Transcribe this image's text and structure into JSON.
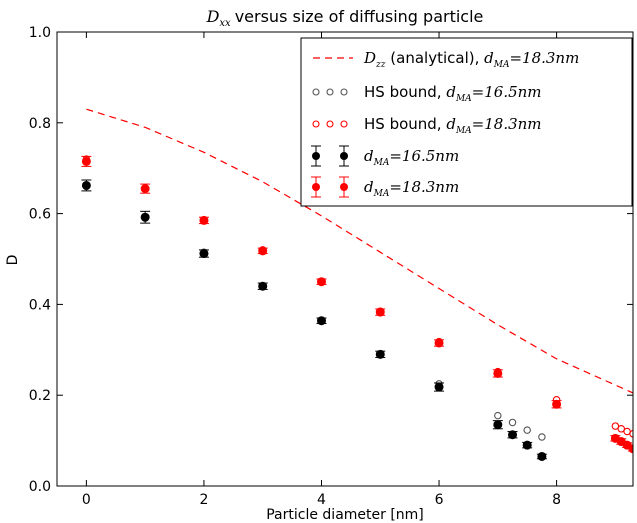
{
  "chart_data": {
    "type": "scatter",
    "title": "versus size of diffusing particle",
    "title_math": "D",
    "title_math_sub": "xx",
    "xlabel": "Particle diameter [nm]",
    "ylabel": "D",
    "xlim": [
      -0.5,
      9.3
    ],
    "ylim": [
      0.0,
      1.0
    ],
    "xticks": [
      0,
      2,
      4,
      6,
      8
    ],
    "yticks": [
      0.0,
      0.2,
      0.4,
      0.6,
      0.8,
      1.0
    ],
    "xtick_labels": [
      "0",
      "2",
      "4",
      "6",
      "8"
    ],
    "ytick_labels": [
      "0.0",
      "0.2",
      "0.4",
      "0.6",
      "0.8",
      "1.0"
    ],
    "grid": false,
    "legend_position": "top-right",
    "colors": {
      "black": "#000000",
      "red": "#ff0000",
      "grey": "#555555"
    },
    "legend": [
      {
        "text": "(analytical), ",
        "math_pre": "D",
        "math_pre_sub": "zz",
        "math": "d",
        "math_sub": "MA",
        "math_post": "=18.3nm"
      },
      {
        "text": "HS bound, ",
        "math": "d",
        "math_sub": "MA",
        "math_post": "=16.5nm"
      },
      {
        "text": "HS bound, ",
        "math": "d",
        "math_sub": "MA",
        "math_post": "=18.3nm"
      },
      {
        "text": "",
        "math": "d",
        "math_sub": "MA",
        "math_post": "=16.5nm"
      },
      {
        "text": "",
        "math": "d",
        "math_sub": "MA",
        "math_post": "=18.3nm"
      }
    ],
    "series": [
      {
        "kind": "dashed-line",
        "color": "red",
        "x": [
          0,
          1,
          2,
          3,
          4,
          5,
          6,
          7,
          8,
          9.3
        ],
        "y": [
          0.83,
          0.79,
          0.735,
          0.67,
          0.595,
          0.515,
          0.435,
          0.355,
          0.28,
          0.205
        ]
      },
      {
        "kind": "open-circles",
        "color": "grey",
        "x": [
          0,
          1,
          2,
          3,
          4,
          5,
          6,
          7,
          7.25,
          7.5,
          7.75
        ],
        "y": [
          0.66,
          0.59,
          0.515,
          0.44,
          0.365,
          0.29,
          0.225,
          0.155,
          0.14,
          0.123,
          0.108
        ]
      },
      {
        "kind": "open-circles",
        "color": "red",
        "x": [
          0,
          1,
          2,
          3,
          4,
          5,
          6,
          7,
          8,
          9.0,
          9.1,
          9.2,
          9.3
        ],
        "y": [
          0.72,
          0.655,
          0.585,
          0.52,
          0.45,
          0.385,
          0.318,
          0.252,
          0.19,
          0.132,
          0.126,
          0.12,
          0.115
        ]
      },
      {
        "kind": "filled-errorbars",
        "color": "black",
        "x": [
          0,
          1,
          2,
          3,
          4,
          5,
          6,
          7,
          7.25,
          7.5,
          7.75
        ],
        "y": [
          0.662,
          0.592,
          0.512,
          0.44,
          0.364,
          0.29,
          0.218,
          0.135,
          0.113,
          0.09,
          0.065
        ],
        "err": [
          0.012,
          0.013,
          0.008,
          0.007,
          0.006,
          0.007,
          0.009,
          0.009,
          0.007,
          0.006,
          0.005
        ]
      },
      {
        "kind": "filled-errorbars",
        "color": "red",
        "x": [
          0,
          1,
          2,
          3,
          4,
          5,
          6,
          7,
          8,
          9.0,
          9.1,
          9.2,
          9.3
        ],
        "y": [
          0.715,
          0.655,
          0.585,
          0.518,
          0.45,
          0.383,
          0.315,
          0.248,
          0.18,
          0.105,
          0.098,
          0.09,
          0.082
        ],
        "err": [
          0.011,
          0.01,
          0.007,
          0.006,
          0.006,
          0.007,
          0.007,
          0.008,
          0.008,
          0.006,
          0.006,
          0.005,
          0.005
        ]
      }
    ]
  }
}
